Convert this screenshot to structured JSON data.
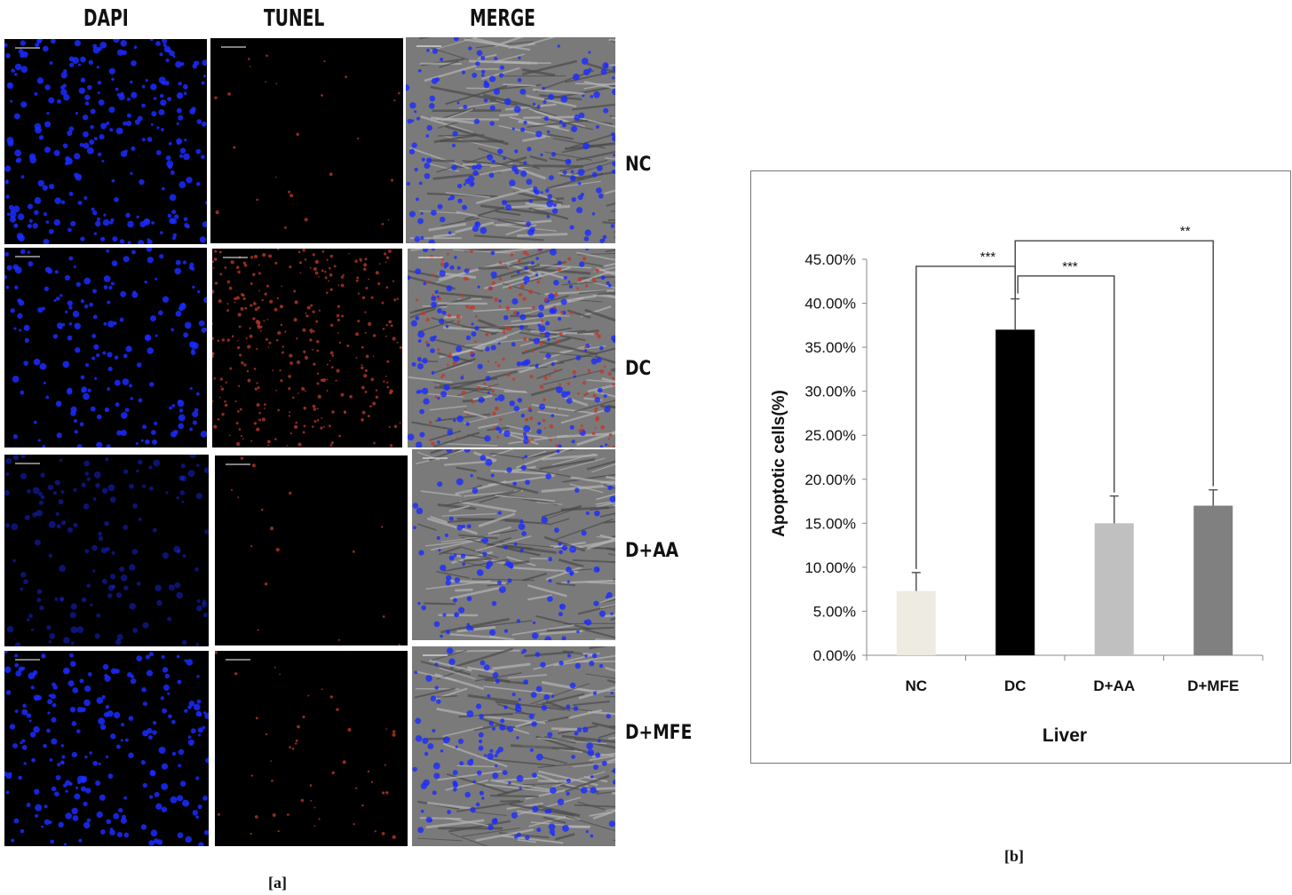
{
  "panel_a": {
    "column_headers": [
      "DAPI",
      "TUNEL",
      "MERGE"
    ],
    "row_labels": [
      "NC",
      "DC",
      "D+AA",
      "D+MFE"
    ],
    "caption": "[a]"
  },
  "panel_b": {
    "caption": "[b]"
  },
  "colors": {
    "nuclei": "#1a2cff",
    "tunel": "#c23a2a",
    "merge_bg": "#6e6e6e",
    "bar_nc": "#eeebe2",
    "bar_dc": "#000000",
    "bar_daa": "#c0c0c0",
    "bar_dmfe": "#808080"
  },
  "chart_data": {
    "type": "bar",
    "categories": [
      "NC",
      "DC",
      "D+AA",
      "D+MFE"
    ],
    "values": [
      7.3,
      37.0,
      15.0,
      17.0
    ],
    "errors": [
      2.1,
      3.5,
      3.1,
      1.8
    ],
    "bar_colors": [
      "#eeebe2",
      "#000000",
      "#c0c0c0",
      "#808080"
    ],
    "xlabel": "Liver",
    "ylabel": "Apoptotic cells(%)",
    "ylim": [
      0,
      45
    ],
    "yticks": [
      0,
      5,
      10,
      15,
      20,
      25,
      30,
      35,
      40,
      45
    ],
    "ytick_labels": [
      "0.00%",
      "5.00%",
      "10.00%",
      "15.00%",
      "20.00%",
      "25.00%",
      "30.00%",
      "35.00%",
      "40.00%",
      "45.00%"
    ],
    "grid": false,
    "significance": [
      {
        "from": "NC",
        "to": "DC",
        "label": "***"
      },
      {
        "from": "DC",
        "to": "D+AA",
        "label": "***"
      },
      {
        "from": "DC",
        "to": "D+MFE",
        "label": "**"
      }
    ]
  }
}
